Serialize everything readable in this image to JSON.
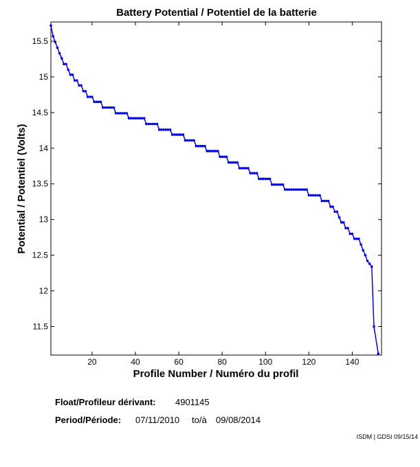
{
  "chart_data": {
    "type": "line",
    "title": "Battery Potential / Potentiel de la batterie",
    "x_label": "Profile Number / Numéro du profil",
    "y_label": "Potential / Potentiel (Volts)",
    "x": [
      1,
      2,
      3,
      4,
      5,
      6,
      7,
      8,
      9,
      10,
      11,
      12,
      13,
      14,
      15,
      16,
      17,
      18,
      19,
      20,
      21,
      22,
      23,
      24,
      25,
      26,
      27,
      28,
      29,
      30,
      31,
      32,
      33,
      34,
      35,
      36,
      37,
      38,
      39,
      40,
      41,
      42,
      43,
      44,
      45,
      46,
      47,
      48,
      49,
      50,
      51,
      52,
      53,
      54,
      55,
      56,
      57,
      58,
      59,
      60,
      61,
      62,
      63,
      64,
      65,
      66,
      67,
      68,
      69,
      70,
      71,
      72,
      73,
      74,
      75,
      76,
      77,
      78,
      79,
      80,
      81,
      82,
      83,
      84,
      85,
      86,
      87,
      88,
      89,
      90,
      91,
      92,
      93,
      94,
      95,
      96,
      97,
      98,
      99,
      100,
      101,
      102,
      103,
      104,
      105,
      106,
      107,
      108,
      109,
      110,
      111,
      112,
      113,
      114,
      115,
      116,
      117,
      118,
      119,
      120,
      121,
      122,
      123,
      124,
      125,
      126,
      127,
      128,
      129,
      130,
      131,
      132,
      133,
      134,
      135,
      136,
      137,
      138,
      139,
      140,
      141,
      142,
      143,
      144,
      145,
      146,
      147,
      148,
      149,
      150,
      152
    ],
    "series": [
      {
        "color": "#0000ff",
        "values": [
          15.72,
          15.57,
          15.49,
          15.41,
          15.33,
          15.26,
          15.18,
          15.18,
          15.1,
          15.03,
          15.03,
          14.95,
          14.95,
          14.88,
          14.88,
          14.8,
          14.8,
          14.72,
          14.72,
          14.72,
          14.65,
          14.65,
          14.65,
          14.65,
          14.57,
          14.57,
          14.57,
          14.57,
          14.57,
          14.57,
          14.49,
          14.49,
          14.49,
          14.49,
          14.49,
          14.49,
          14.42,
          14.42,
          14.42,
          14.42,
          14.42,
          14.42,
          14.42,
          14.42,
          14.34,
          14.34,
          14.34,
          14.34,
          14.34,
          14.34,
          14.26,
          14.26,
          14.26,
          14.26,
          14.26,
          14.26,
          14.19,
          14.19,
          14.19,
          14.19,
          14.19,
          14.19,
          14.11,
          14.11,
          14.11,
          14.11,
          14.11,
          14.03,
          14.03,
          14.03,
          14.03,
          14.03,
          13.96,
          13.96,
          13.96,
          13.96,
          13.96,
          13.96,
          13.88,
          13.88,
          13.88,
          13.88,
          13.8,
          13.8,
          13.8,
          13.8,
          13.8,
          13.72,
          13.72,
          13.72,
          13.72,
          13.72,
          13.65,
          13.65,
          13.65,
          13.65,
          13.57,
          13.57,
          13.57,
          13.57,
          13.57,
          13.57,
          13.49,
          13.49,
          13.49,
          13.49,
          13.49,
          13.49,
          13.42,
          13.42,
          13.42,
          13.42,
          13.42,
          13.42,
          13.42,
          13.42,
          13.42,
          13.42,
          13.42,
          13.34,
          13.34,
          13.34,
          13.34,
          13.34,
          13.34,
          13.26,
          13.26,
          13.26,
          13.26,
          13.18,
          13.18,
          13.11,
          13.11,
          13.03,
          12.96,
          12.96,
          12.88,
          12.88,
          12.8,
          12.8,
          12.73,
          12.73,
          12.73,
          12.65,
          12.57,
          12.5,
          12.42,
          12.38,
          12.34,
          11.5,
          11.12
        ]
      }
    ],
    "xlim": [
      1,
      153.5
    ],
    "ylim": [
      11.1,
      15.77
    ],
    "xticks": [
      20,
      40,
      60,
      80,
      100,
      120,
      140
    ],
    "yticks": [
      11.5,
      12,
      12.5,
      13,
      13.5,
      14,
      14.5,
      15,
      15.5
    ]
  },
  "footer": {
    "float_label": "Float/Profileur dérivant:",
    "float_id": "4901145",
    "period_label": "Period/Période:",
    "period_start": "07/11/2010",
    "period_sep": "to/à",
    "period_end": "09/08/2014",
    "credit": "ISDM | GDSI 09/15/14"
  }
}
